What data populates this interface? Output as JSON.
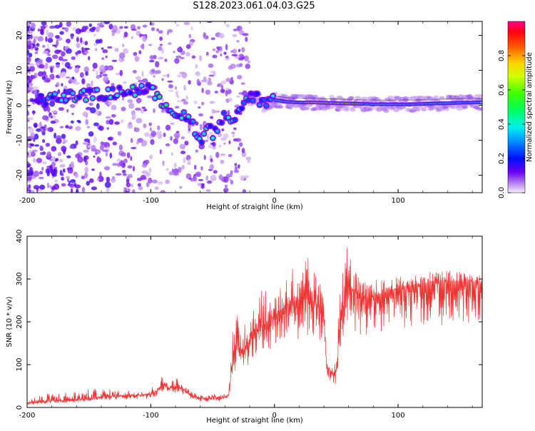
{
  "title": "S128.2023.061.04.03.G25",
  "chart_data": [
    {
      "type": "heatmap",
      "xlabel": "Height of straight line (km)",
      "ylabel": "Frequency (Hz)",
      "xlim": [
        -200,
        168
      ],
      "ylim": [
        -25,
        24
      ],
      "xticks": [
        -200,
        -100,
        0,
        100
      ],
      "yticks": [
        -20,
        -10,
        0,
        10,
        20
      ],
      "colorbar": {
        "label": "Normalized spectral amplitude",
        "range": [
          0,
          1
        ],
        "ticks": [
          "0.0",
          "0.2",
          "0.4",
          "0.6",
          "0.8"
        ]
      },
      "ridge_trace": {
        "x": [
          -190,
          -180,
          -170,
          -160,
          -150,
          -140,
          -130,
          -120,
          -110,
          -100,
          -95,
          -90,
          -85,
          -80,
          -75,
          -70,
          -65,
          -60,
          -55,
          -50,
          -45,
          -40,
          -35,
          -30,
          -25,
          -20,
          -15,
          -10,
          -5,
          0,
          10,
          20,
          30,
          40,
          50,
          60,
          70,
          80,
          90,
          100,
          110,
          120,
          130,
          140,
          150,
          160,
          168
        ],
        "y": [
          1.5,
          2,
          2.5,
          3,
          3,
          3,
          3.5,
          4,
          4.5,
          4.5,
          2,
          1,
          -1,
          -2,
          -3,
          -4,
          -6,
          -11,
          -5,
          -8,
          -6,
          -3,
          -4,
          -2,
          0,
          2,
          3,
          0,
          1,
          1.5,
          1,
          0.8,
          0.8,
          0.7,
          0.6,
          0.5,
          0.4,
          0.3,
          0.3,
          0.3,
          0.3,
          0.4,
          0.5,
          0.6,
          0.7,
          0.8,
          0.8
        ]
      }
    },
    {
      "type": "line",
      "xlabel": "Height of straight line (km)",
      "ylabel": "SNR (10 * v/v)",
      "xlim": [
        -200,
        168
      ],
      "ylim": [
        0,
        400
      ],
      "xticks": [
        -200,
        -100,
        0,
        100
      ],
      "yticks": [
        0,
        100,
        200,
        300,
        400
      ],
      "series": [
        {
          "color": "#ee3333",
          "x": [
            -200,
            -180,
            -160,
            -140,
            -120,
            -100,
            -95,
            -90,
            -85,
            -80,
            -75,
            -70,
            -65,
            -60,
            -55,
            -50,
            -45,
            -40,
            -37,
            -35,
            -33,
            -30,
            -25,
            -20,
            -15,
            -10,
            -5,
            0,
            5,
            10,
            15,
            20,
            25,
            30,
            35,
            40,
            42,
            44,
            46,
            48,
            50,
            52,
            55,
            58,
            60,
            62,
            65,
            70,
            75,
            80,
            90,
            100,
            110,
            120,
            130,
            140,
            150,
            160,
            168
          ],
          "y": [
            10,
            15,
            18,
            25,
            28,
            30,
            40,
            55,
            45,
            50,
            45,
            35,
            25,
            22,
            20,
            25,
            22,
            25,
            30,
            80,
            120,
            140,
            130,
            160,
            180,
            190,
            200,
            215,
            220,
            240,
            245,
            240,
            260,
            250,
            240,
            230,
            100,
            90,
            85,
            80,
            85,
            150,
            230,
            260,
            320,
            280,
            270,
            260,
            255,
            260,
            270,
            280,
            285,
            290,
            295,
            295,
            295,
            295,
            290
          ],
          "envelope_max": [
            25,
            35,
            40,
            45,
            40,
            45,
            65,
            75,
            60,
            75,
            55,
            45,
            35,
            30,
            28,
            35,
            30,
            35,
            40,
            180,
            190,
            220,
            240,
            250,
            280,
            300,
            250,
            290,
            300,
            330,
            340,
            300,
            360,
            340,
            300,
            280,
            140,
            110,
            100,
            100,
            110,
            240,
            360,
            390,
            400,
            340,
            320,
            300,
            290,
            300,
            300,
            305,
            310,
            315,
            325,
            320,
            318,
            315,
            310
          ]
        }
      ]
    }
  ]
}
